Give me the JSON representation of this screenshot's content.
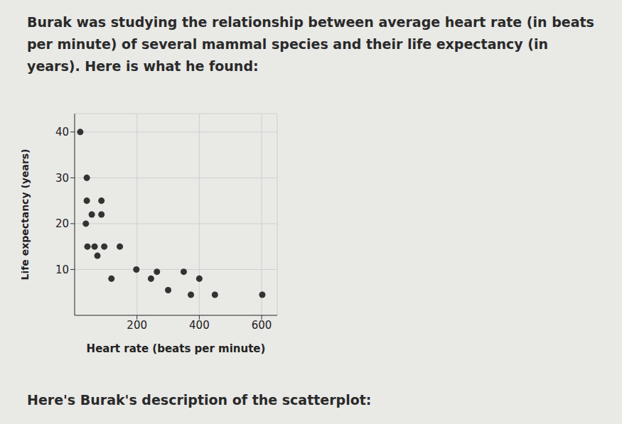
{
  "text": {
    "intro": "Burak was studying the relationship between average heart rate (in beats per minute) of several mammal species and their life expectancy (in years). Here is what he found:",
    "footer": "Here's Burak's description of the scatterplot:"
  },
  "chart_data": {
    "type": "scatter",
    "x_label": "Heart rate (beats per minute)",
    "y_label": "Life expectancy (years)",
    "x": [
      18,
      39,
      39,
      86,
      55,
      86,
      36,
      41,
      64,
      95,
      73,
      145,
      118,
      198,
      245,
      264,
      350,
      400,
      300,
      373,
      450,
      602
    ],
    "values": [
      40,
      30,
      25,
      25,
      22,
      22,
      20,
      15,
      15,
      15,
      13,
      15,
      8,
      10,
      8,
      9.5,
      9.5,
      8,
      5.5,
      4.5,
      4.5,
      4.5
    ],
    "color": "#333333",
    "marker": "circle",
    "xlim": [
      0,
      650
    ],
    "xticks": [
      200,
      400,
      600
    ],
    "ylim": [
      0,
      44
    ],
    "yticks": [
      10,
      20,
      30,
      40
    ],
    "grid": true
  }
}
